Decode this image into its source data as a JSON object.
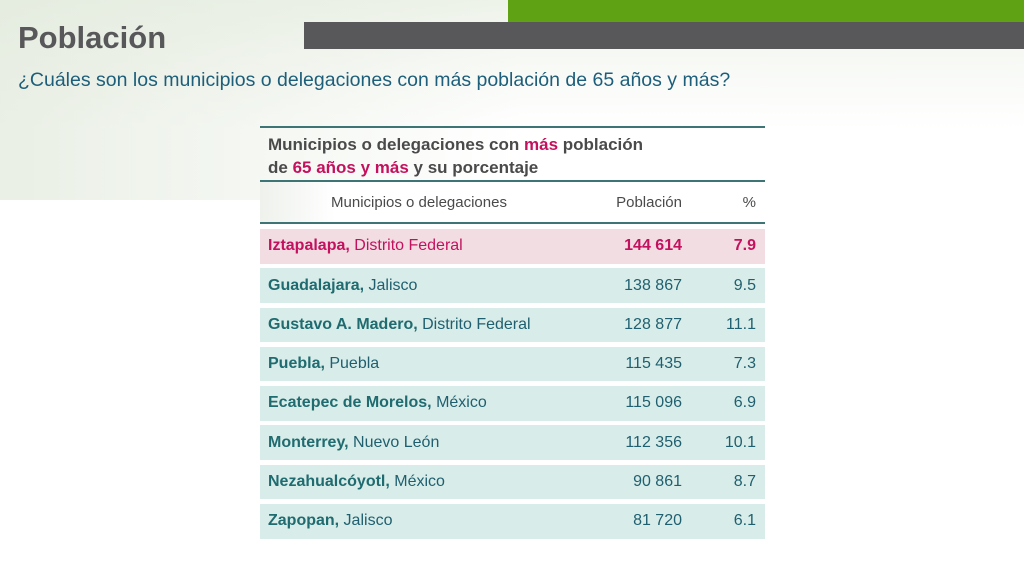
{
  "slide": {
    "title": "Población",
    "subtitle": "¿Cuáles son los municipios o delegaciones con más población de 65 años y más?"
  },
  "table": {
    "header": {
      "part1": "Municipios o delegaciones con ",
      "highlight1": "más",
      "part2": " población",
      "part3": "de ",
      "highlight2": "65 años y más",
      "part4": " y su porcentaje"
    },
    "columns": [
      "Municipios o delegaciones",
      "Población",
      "%"
    ],
    "rows": [
      {
        "name": "Iztapalapa,",
        "place": " Distrito Federal",
        "population": "144 614",
        "percent": "7.9"
      },
      {
        "name": "Guadalajara,",
        "place": " Jalisco",
        "population": "138 867",
        "percent": "9.5"
      },
      {
        "name": "Gustavo A. Madero,",
        "place": " Distrito Federal",
        "population": "128 877",
        "percent": "11.1"
      },
      {
        "name": "Puebla,",
        "place": " Puebla",
        "population": "115 435",
        "percent": "7.3"
      },
      {
        "name": "Ecatepec de Morelos,",
        "place": " México",
        "population": "115 096",
        "percent": "6.9"
      },
      {
        "name": "Monterrey,",
        "place": " Nuevo León",
        "population": "112 356",
        "percent": "10.1"
      },
      {
        "name": "Nezahualcóyotl,",
        "place": " México",
        "population": "90 861",
        "percent": "8.7"
      },
      {
        "name": "Zapopan,",
        "place": " Jalisco",
        "population": "81 720",
        "percent": "6.1"
      }
    ]
  },
  "colors": {
    "green_bar": "#5fa314",
    "grey_bar": "#58585a",
    "highlight": "#c4115e",
    "teal_text": "#1f5f6f",
    "row_bg": "#d8ede9",
    "first_row_bg": "#f1dde2"
  }
}
